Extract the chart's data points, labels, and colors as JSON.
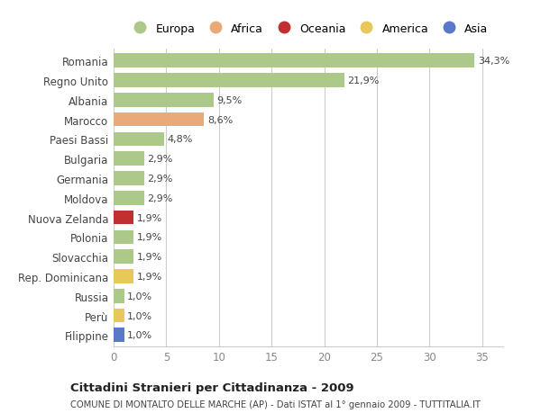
{
  "categories": [
    "Romania",
    "Regno Unito",
    "Albania",
    "Marocco",
    "Paesi Bassi",
    "Bulgaria",
    "Germania",
    "Moldova",
    "Nuova Zelanda",
    "Polonia",
    "Slovacchia",
    "Rep. Dominicana",
    "Russia",
    "Perù",
    "Filippine"
  ],
  "values": [
    34.3,
    21.9,
    9.5,
    8.6,
    4.8,
    2.9,
    2.9,
    2.9,
    1.9,
    1.9,
    1.9,
    1.9,
    1.0,
    1.0,
    1.0
  ],
  "labels": [
    "34,3%",
    "21,9%",
    "9,5%",
    "8,6%",
    "4,8%",
    "2,9%",
    "2,9%",
    "2,9%",
    "1,9%",
    "1,9%",
    "1,9%",
    "1,9%",
    "1,0%",
    "1,0%",
    "1,0%"
  ],
  "bar_colors": [
    "europa",
    "europa",
    "europa",
    "africa",
    "europa",
    "europa",
    "europa",
    "europa",
    "oceania",
    "europa",
    "europa",
    "america",
    "europa",
    "america",
    "asia"
  ],
  "color_map": {
    "europa": "#adc98a",
    "africa": "#e8aa78",
    "oceania": "#c03030",
    "america": "#e8c858",
    "asia": "#5878c8"
  },
  "legend_labels": [
    "Europa",
    "Africa",
    "Oceania",
    "America",
    "Asia"
  ],
  "legend_keys": [
    "europa",
    "africa",
    "oceania",
    "america",
    "asia"
  ],
  "legend_colors": [
    "#adc98a",
    "#e8aa78",
    "#c03030",
    "#e8c858",
    "#5878c8"
  ],
  "title": "Cittadini Stranieri per Cittadinanza - 2009",
  "subtitle": "COMUNE DI MONTALTO DELLE MARCHE (AP) - Dati ISTAT al 1° gennaio 2009 - TUTTITALIA.IT",
  "xlim": [
    0,
    37
  ],
  "xticks": [
    0,
    5,
    10,
    15,
    20,
    25,
    30,
    35
  ],
  "background_color": "#ffffff",
  "grid_color": "#cccccc"
}
